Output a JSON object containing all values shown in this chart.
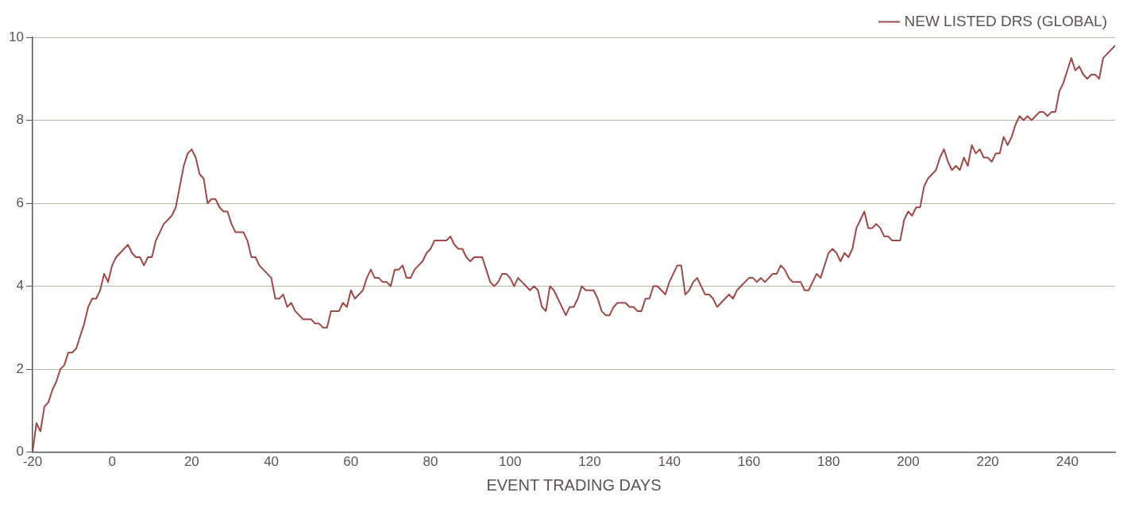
{
  "chart_data": {
    "type": "line",
    "xlabel": "EVENT TRADING DAYS",
    "xlim": [
      -20,
      252
    ],
    "xticks": [
      -20,
      0,
      20,
      40,
      60,
      80,
      100,
      120,
      140,
      160,
      180,
      200,
      220,
      240
    ],
    "ylim": [
      0,
      10
    ],
    "yticks": [
      0,
      2,
      4,
      6,
      8,
      10
    ],
    "grid": "y",
    "legend": "top right",
    "marker": "none",
    "line_style": "solid",
    "series": [
      {
        "name": "NEW LISTED DRS (GLOBAL)",
        "color": "#a04848",
        "x": [
          -20,
          -19,
          -18,
          -17,
          -16,
          -15,
          -14,
          -13,
          -12,
          -11,
          -10,
          -9,
          -8,
          -7,
          -6,
          -5,
          -4,
          -3,
          -2,
          -1,
          0,
          1,
          2,
          3,
          4,
          5,
          6,
          7,
          8,
          9,
          10,
          11,
          12,
          13,
          14,
          15,
          16,
          17,
          18,
          19,
          20,
          21,
          22,
          23,
          24,
          25,
          26,
          27,
          28,
          29,
          30,
          31,
          32,
          33,
          34,
          35,
          36,
          37,
          38,
          39,
          40,
          41,
          42,
          43,
          44,
          45,
          46,
          47,
          48,
          49,
          50,
          51,
          52,
          53,
          54,
          55,
          56,
          57,
          58,
          59,
          60,
          61,
          62,
          63,
          64,
          65,
          66,
          67,
          68,
          69,
          70,
          71,
          72,
          73,
          74,
          75,
          76,
          77,
          78,
          79,
          80,
          81,
          82,
          83,
          84,
          85,
          86,
          87,
          88,
          89,
          90,
          91,
          92,
          93,
          94,
          95,
          96,
          97,
          98,
          99,
          100,
          101,
          102,
          103,
          104,
          105,
          106,
          107,
          108,
          109,
          110,
          111,
          114,
          115,
          116,
          117,
          118,
          119,
          120,
          121,
          122,
          123,
          124,
          125,
          126,
          127,
          128,
          129,
          130,
          131,
          132,
          133,
          134,
          135,
          136,
          137,
          138,
          139,
          140,
          141,
          142,
          143,
          144,
          145,
          146,
          147,
          148,
          149,
          150,
          151,
          152,
          153,
          154,
          155,
          156,
          157,
          158,
          159,
          160,
          161,
          162,
          163,
          164,
          165,
          166,
          167,
          168,
          169,
          170,
          171,
          172,
          173,
          174,
          175,
          176,
          177,
          178,
          179,
          180,
          181,
          182,
          183,
          184,
          185,
          186,
          187,
          188,
          189,
          190,
          191,
          192,
          193,
          194,
          195,
          196,
          197,
          198,
          199,
          200,
          201,
          202,
          203,
          204,
          205,
          206,
          207,
          208,
          209,
          210,
          211,
          212,
          213,
          214,
          215,
          216,
          217,
          218,
          219,
          220,
          221,
          222,
          223,
          224,
          225,
          226,
          227,
          228,
          229,
          230,
          231,
          232,
          233,
          234,
          235,
          236,
          237,
          238,
          239,
          240,
          241,
          242,
          243,
          244,
          245,
          246,
          247,
          248,
          249,
          250,
          251,
          252
        ],
        "values": [
          0,
          0.7,
          0.5,
          1.1,
          1.2,
          1.5,
          1.7,
          2.0,
          2.1,
          2.4,
          2.4,
          2.5,
          2.8,
          3.1,
          3.5,
          3.7,
          3.7,
          3.9,
          4.3,
          4.1,
          4.5,
          4.7,
          4.8,
          4.9,
          5.0,
          4.8,
          4.7,
          4.7,
          4.5,
          4.7,
          4.7,
          5.1,
          5.3,
          5.5,
          5.6,
          5.7,
          5.9,
          6.4,
          6.9,
          7.2,
          7.3,
          7.1,
          6.7,
          6.6,
          6.0,
          6.1,
          6.1,
          5.9,
          5.8,
          5.8,
          5.5,
          5.3,
          5.3,
          5.3,
          5.1,
          4.7,
          4.7,
          4.5,
          4.4,
          4.3,
          4.2,
          3.7,
          3.7,
          3.8,
          3.5,
          3.6,
          3.4,
          3.3,
          3.2,
          3.2,
          3.2,
          3.1,
          3.1,
          3.0,
          3.0,
          3.4,
          3.4,
          3.4,
          3.6,
          3.5,
          3.9,
          3.7,
          3.8,
          3.9,
          4.2,
          4.4,
          4.2,
          4.2,
          4.1,
          4.1,
          4.0,
          4.4,
          4.4,
          4.5,
          4.2,
          4.2,
          4.4,
          4.5,
          4.6,
          4.8,
          4.9,
          5.1,
          5.1,
          5.1,
          5.1,
          5.2,
          5.0,
          4.9,
          4.9,
          4.7,
          4.6,
          4.7,
          4.7,
          4.7,
          4.4,
          4.1,
          4.0,
          4.1,
          4.3,
          4.3,
          4.2,
          4.0,
          4.2,
          4.1,
          4.0,
          3.9,
          4.0,
          3.9,
          3.5,
          3.4,
          4.0,
          3.9,
          3.3,
          3.5,
          3.5,
          3.7,
          4.0,
          3.9,
          3.9,
          3.9,
          3.7,
          3.4,
          3.3,
          3.3,
          3.5,
          3.6,
          3.6,
          3.6,
          3.5,
          3.5,
          3.4,
          3.4,
          3.7,
          3.7,
          4.0,
          4.0,
          3.9,
          3.8,
          4.1,
          4.3,
          4.5,
          4.5,
          3.8,
          3.9,
          4.1,
          4.2,
          4.0,
          3.8,
          3.8,
          3.7,
          3.5,
          3.6,
          3.7,
          3.8,
          3.7,
          3.9,
          4.0,
          4.1,
          4.2,
          4.2,
          4.1,
          4.2,
          4.1,
          4.2,
          4.3,
          4.3,
          4.5,
          4.4,
          4.2,
          4.1,
          4.1,
          4.1,
          3.9,
          3.9,
          4.1,
          4.3,
          4.2,
          4.5,
          4.8,
          4.9,
          4.8,
          4.6,
          4.8,
          4.7,
          4.9,
          5.4,
          5.6,
          5.8,
          5.4,
          5.4,
          5.5,
          5.4,
          5.2,
          5.2,
          5.1,
          5.1,
          5.1,
          5.6,
          5.8,
          5.7,
          5.9,
          5.9,
          6.4,
          6.6,
          6.7,
          6.8,
          7.1,
          7.3,
          7.0,
          6.8,
          6.9,
          6.8,
          7.1,
          6.9,
          7.4,
          7.2,
          7.3,
          7.1,
          7.1,
          7.0,
          7.2,
          7.2,
          7.6,
          7.4,
          7.6,
          7.9,
          8.1,
          8.0,
          8.1,
          8.0,
          8.1,
          8.2,
          8.2,
          8.1,
          8.2,
          8.2,
          8.7,
          8.9,
          9.2,
          9.5,
          9.2,
          9.3,
          9.1,
          9.0,
          9.1,
          9.1,
          9.0,
          9.5,
          9.6,
          9.7,
          9.8
        ]
      }
    ]
  }
}
